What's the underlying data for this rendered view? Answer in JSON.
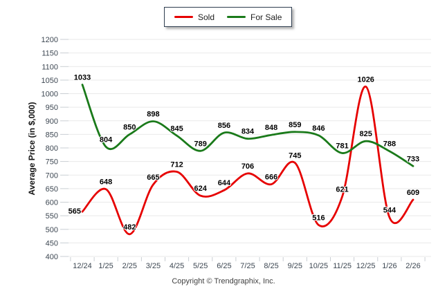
{
  "chart_data": {
    "type": "line",
    "title": "",
    "ylabel": "Average Price (in $,000)",
    "ylim": [
      400,
      1200
    ],
    "ytick_step": 50,
    "grid": true,
    "legend_position": "top-center",
    "categories": [
      "12/24",
      "1/25",
      "2/25",
      "3/25",
      "4/25",
      "5/25",
      "6/25",
      "7/25",
      "8/25",
      "9/25",
      "10/25",
      "11/25",
      "12/25",
      "1/26",
      "2/26"
    ],
    "series": [
      {
        "name": "Sold",
        "color": "#e60000",
        "values": [
          565,
          648,
          482,
          665,
          712,
          624,
          644,
          706,
          666,
          745,
          516,
          621,
          1026,
          544,
          609
        ]
      },
      {
        "name": "For Sale",
        "color": "#1a7a1a",
        "values": [
          1033,
          804,
          850,
          898,
          845,
          789,
          856,
          834,
          848,
          859,
          846,
          781,
          825,
          788,
          733
        ]
      }
    ],
    "copyright": "Copyright © Trendgraphix, Inc."
  }
}
